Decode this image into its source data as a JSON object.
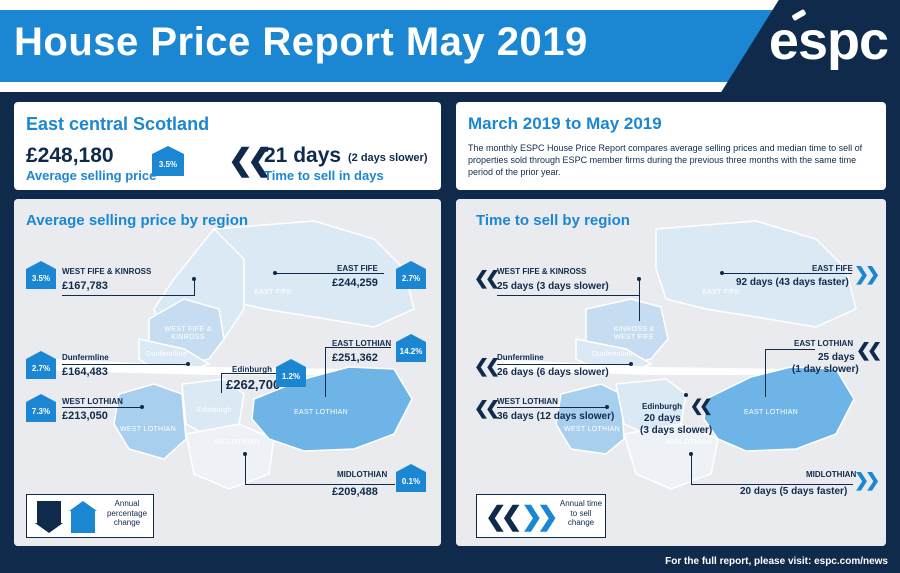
{
  "header": {
    "title": "House Price Report May 2019",
    "logo_text": "espc"
  },
  "summary": {
    "title": "East central Scotland",
    "price": "£248,180",
    "price_label": "Average selling price",
    "price_change": "3.5%",
    "days": "21 days",
    "days_note": "(2 days slower)",
    "days_label": "Time to sell in days"
  },
  "period": {
    "title": "March 2019 to May 2019",
    "description": "The monthly ESPC House Price Report compares average selling prices and median time to sell of properties sold through ESPC member firms during the previous three months with the same time period of the prior year."
  },
  "price_panel": {
    "title": "Average selling price by region",
    "map_labels": {
      "east_fife": "EAST FIFE",
      "west_fife": "WEST FIFE & KINROSS",
      "dunfermline": "Dunfermline",
      "edinburgh": "Edinburgh",
      "east_lothian": "EAST LOTHIAN",
      "west_lothian": "WEST LOTHIAN",
      "midlothian": "MIDLOTHIAN"
    },
    "regions": {
      "west_fife": {
        "name": "WEST FIFE & KINROSS",
        "value": "£167,783",
        "change": "3.5%"
      },
      "east_fife": {
        "name": "EAST FIFE",
        "value": "£244,259",
        "change": "2.7%"
      },
      "dunfermline": {
        "name": "Dunfermline",
        "value": "£164,483",
        "change": "2.7%"
      },
      "east_lothian": {
        "name": "EAST LOTHIAN",
        "value": "£251,362",
        "change": "14.2%"
      },
      "edinburgh": {
        "name": "Edinburgh",
        "value": "£262,700",
        "change": "1.2%"
      },
      "west_lothian": {
        "name": "WEST LOTHIAN",
        "value": "£213,050",
        "change": "7.3%"
      },
      "midlothian": {
        "name": "MIDLOTHIAN",
        "value": "£209,488",
        "change": "0.1%"
      }
    },
    "legend": "Annual percentage change"
  },
  "time_panel": {
    "title": "Time to sell by region",
    "map_labels": {
      "east_fife": "EAST FIFE",
      "west_fife": "KINROSS & WEST FIFE",
      "dunfermline": "Dunfermline",
      "west_lothian": "WEST LOTHIAN",
      "midlothian": "MIDLOTHIAN",
      "east_lothian": "EAST LOTHIAN"
    },
    "regions": {
      "west_fife": {
        "name": "WEST FIFE & KINROSS",
        "value": "25 days (3 days slower)"
      },
      "east_fife": {
        "name": "EAST FIFE",
        "value": "92 days (43 days faster)"
      },
      "dunfermline": {
        "name": "Dunfermline",
        "value": "26 days (6 days slower)"
      },
      "east_lothian": {
        "name": "EAST LOTHIAN",
        "value_line1": "25 days",
        "value_line2": "(1 day slower)"
      },
      "west_lothian": {
        "name": "WEST LOTHIAN",
        "value": "36 days (12 days slower)"
      },
      "edinburgh": {
        "name": "Edinburgh",
        "value_line1": "20 days",
        "value_line2": "(3 days slower)"
      },
      "midlothian": {
        "name": "MIDLOTHIAN",
        "value": "20 days (5 days faster)"
      }
    },
    "legend": "Annual time to sell change"
  },
  "footer": {
    "text": "For the full report, please visit: espc.com/news"
  },
  "colors": {
    "navy": "#102a4c",
    "blue": "#1b87d3",
    "map_land": "#e3e6ea",
    "map_light": "#dbe9f5",
    "map_mid": "#a9cfee",
    "map_strong": "#6fb4e6"
  }
}
